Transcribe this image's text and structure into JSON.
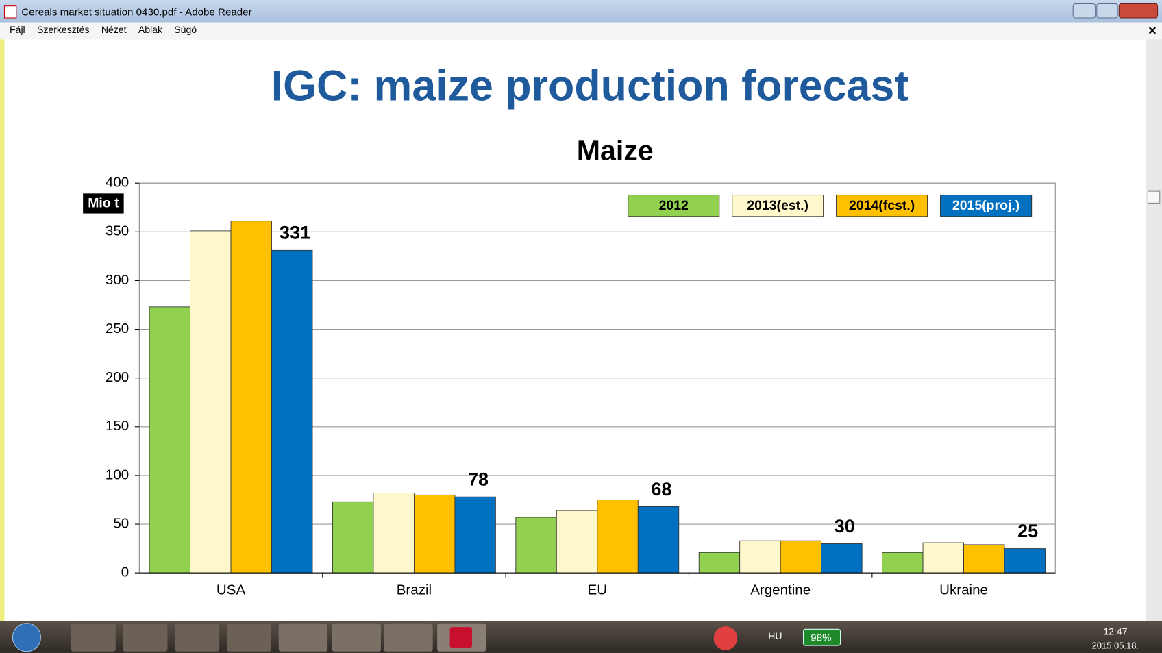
{
  "window": {
    "title": "Cereals market situation 0430.pdf - Adobe Reader",
    "menu": [
      "Fájl",
      "Szerkesztés",
      "Nézet",
      "Ablak",
      "Súgó"
    ]
  },
  "document": {
    "heading": "IGC: maize production forecast"
  },
  "chart_data": {
    "type": "bar",
    "title": "Maize",
    "y_label": "Mio t",
    "categories": [
      "USA",
      "Brazil",
      "EU",
      "Argentine",
      "Ukraine"
    ],
    "series": [
      {
        "name": "2012",
        "color": "#92d050",
        "values": [
          273,
          73,
          57,
          21,
          21
        ]
      },
      {
        "name": "2013(est.)",
        "color": "#fff8cc",
        "values": [
          351,
          82,
          64,
          33,
          31
        ]
      },
      {
        "name": "2014(fcst.)",
        "color": "#ffc000",
        "values": [
          361,
          80,
          75,
          33,
          29
        ]
      },
      {
        "name": "2015(proj.)",
        "color": "#0070c0",
        "values": [
          331,
          78,
          68,
          30,
          25
        ],
        "show_labels": true
      }
    ],
    "ylim": [
      0,
      400
    ],
    "yticks": [
      0,
      50,
      100,
      150,
      200,
      250,
      300,
      350,
      400
    ],
    "grid": true,
    "legend": "top-right"
  },
  "taskbar": {
    "language": "HU",
    "battery": "98%",
    "time": "12:47",
    "date": "2015.05.18."
  }
}
